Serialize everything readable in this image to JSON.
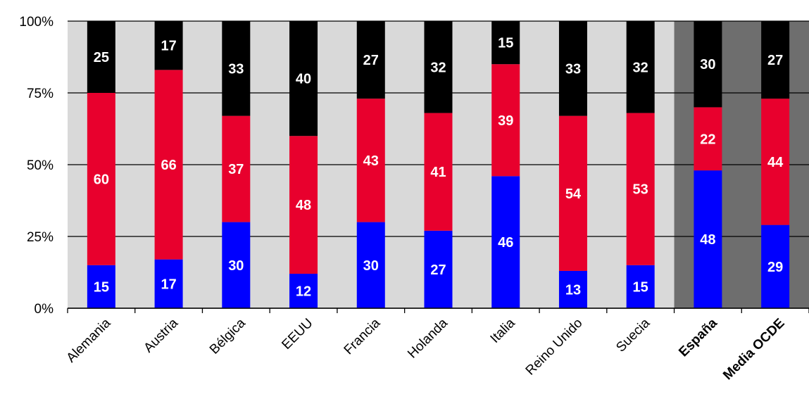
{
  "chart_data": {
    "type": "bar",
    "stacked": true,
    "normalized": true,
    "categories": [
      "Alemania",
      "Austria",
      "Bélgica",
      "EEUU",
      "Francia",
      "Holanda",
      "Italia",
      "Reino Unido",
      "Suecia",
      "España",
      "Media OCDE"
    ],
    "bold_categories": [
      "España",
      "Media OCDE"
    ],
    "highlighted_categories": [
      "España",
      "Media OCDE"
    ],
    "series": [
      {
        "color": "#0000ff",
        "values": [
          15,
          17,
          30,
          12,
          30,
          27,
          46,
          13,
          15,
          48,
          29
        ]
      },
      {
        "color": "#e8002d",
        "values": [
          60,
          66,
          37,
          48,
          43,
          41,
          39,
          54,
          53,
          22,
          44
        ]
      },
      {
        "color": "#000000",
        "values": [
          25,
          17,
          33,
          40,
          27,
          32,
          15,
          33,
          32,
          30,
          27
        ]
      }
    ],
    "y_ticks": [
      "0%",
      "25%",
      "50%",
      "75%",
      "100%"
    ],
    "ylim": [
      0,
      100
    ],
    "grid": true,
    "legend": "none",
    "title": "",
    "xlabel": "",
    "ylabel": "",
    "colors": {
      "plot_background": "#d9d9d9",
      "highlight_background": "#6e6e6e",
      "grid": "#000000",
      "label_text": "#ffffff"
    }
  }
}
